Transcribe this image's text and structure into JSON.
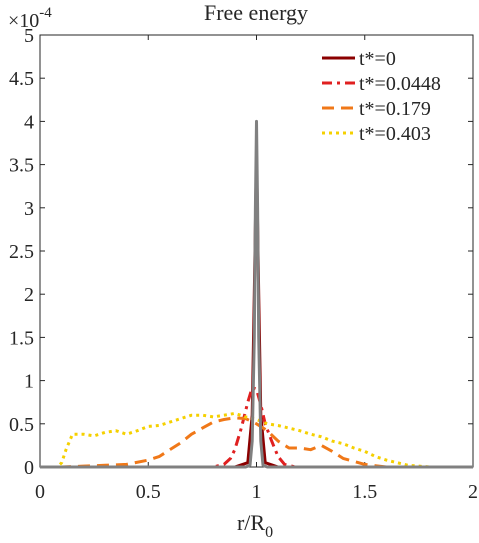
{
  "chart_data": {
    "type": "line",
    "title": "Free energy",
    "xlabel_main": "r/R",
    "xlabel_sub": "0",
    "ylabel": "",
    "xlim": [
      0,
      2
    ],
    "ylim": [
      0,
      5
    ],
    "y_multiplier": "×10",
    "y_exponent": "-4",
    "x_ticks": [
      "0",
      "0.5",
      "1",
      "1.5",
      "2"
    ],
    "y_ticks": [
      "0",
      "0.5",
      "1",
      "1.5",
      "2",
      "2.5",
      "3",
      "3.5",
      "4",
      "4.5",
      "5"
    ],
    "grid": false,
    "legend_position": "top-right",
    "series": [
      {
        "name": "t*=0",
        "color": "#8b0000",
        "dash": "solid",
        "x": [
          0,
          0.9,
          0.96,
          0.98,
          0.99,
          1.0,
          1.01,
          1.02,
          1.04,
          1.1,
          2.0
        ],
        "y": [
          0,
          0,
          0.05,
          0.6,
          2.0,
          3.6,
          2.0,
          0.6,
          0.05,
          0,
          0
        ]
      },
      {
        "name": "t*=0.0448",
        "color": "#e02020",
        "dash": "dashdot",
        "x": [
          0,
          0.8,
          0.85,
          0.88,
          0.9,
          0.93,
          0.96,
          0.98,
          1.0,
          1.02,
          1.04,
          1.07,
          1.1,
          1.13,
          1.18,
          2.0
        ],
        "y": [
          0,
          0,
          0.03,
          0.1,
          0.2,
          0.45,
          0.75,
          0.92,
          0.9,
          0.72,
          0.5,
          0.3,
          0.12,
          0.03,
          0,
          0
        ]
      },
      {
        "name": "t*=0.179",
        "color": "#f07818",
        "dash": "dash",
        "x": [
          0,
          0.1,
          0.2,
          0.3,
          0.4,
          0.5,
          0.55,
          0.6,
          0.65,
          0.7,
          0.75,
          0.8,
          0.85,
          0.9,
          0.95,
          1.0,
          1.05,
          1.1,
          1.15,
          1.2,
          1.25,
          1.3,
          1.35,
          1.4,
          1.5,
          1.6,
          2.0
        ],
        "y": [
          0,
          0,
          0.01,
          0.02,
          0.03,
          0.08,
          0.12,
          0.2,
          0.28,
          0.38,
          0.45,
          0.52,
          0.55,
          0.57,
          0.56,
          0.5,
          0.42,
          0.3,
          0.22,
          0.22,
          0.2,
          0.25,
          0.18,
          0.1,
          0.03,
          0,
          0
        ]
      },
      {
        "name": "t*=0.403",
        "color": "#f5d000",
        "dash": "dot",
        "x": [
          0,
          0.08,
          0.1,
          0.12,
          0.15,
          0.2,
          0.25,
          0.3,
          0.35,
          0.4,
          0.45,
          0.5,
          0.55,
          0.6,
          0.65,
          0.7,
          0.75,
          0.8,
          0.85,
          0.9,
          0.95,
          1.0,
          1.05,
          1.1,
          1.15,
          1.2,
          1.25,
          1.3,
          1.35,
          1.4,
          1.45,
          1.5,
          1.55,
          1.6,
          1.65,
          1.7,
          1.75,
          1.8,
          2.0
        ],
        "y": [
          0,
          0,
          0.05,
          0.2,
          0.38,
          0.38,
          0.36,
          0.4,
          0.42,
          0.38,
          0.42,
          0.47,
          0.48,
          0.52,
          0.56,
          0.6,
          0.6,
          0.58,
          0.6,
          0.62,
          0.58,
          0.55,
          0.5,
          0.48,
          0.45,
          0.42,
          0.38,
          0.35,
          0.3,
          0.27,
          0.22,
          0.18,
          0.12,
          0.08,
          0.05,
          0.02,
          0.01,
          0,
          0
        ]
      }
    ],
    "overlay_series": {
      "color": "#808080",
      "dash": "solid",
      "x": [
        0,
        0.95,
        0.97,
        0.98,
        0.99,
        0.995,
        1.0,
        1.005,
        1.01,
        1.02,
        1.03,
        1.05,
        2.0
      ],
      "y": [
        0,
        0,
        0.02,
        0.3,
        1.5,
        3.0,
        4.0,
        3.0,
        1.5,
        0.3,
        0.02,
        0,
        0
      ]
    }
  }
}
